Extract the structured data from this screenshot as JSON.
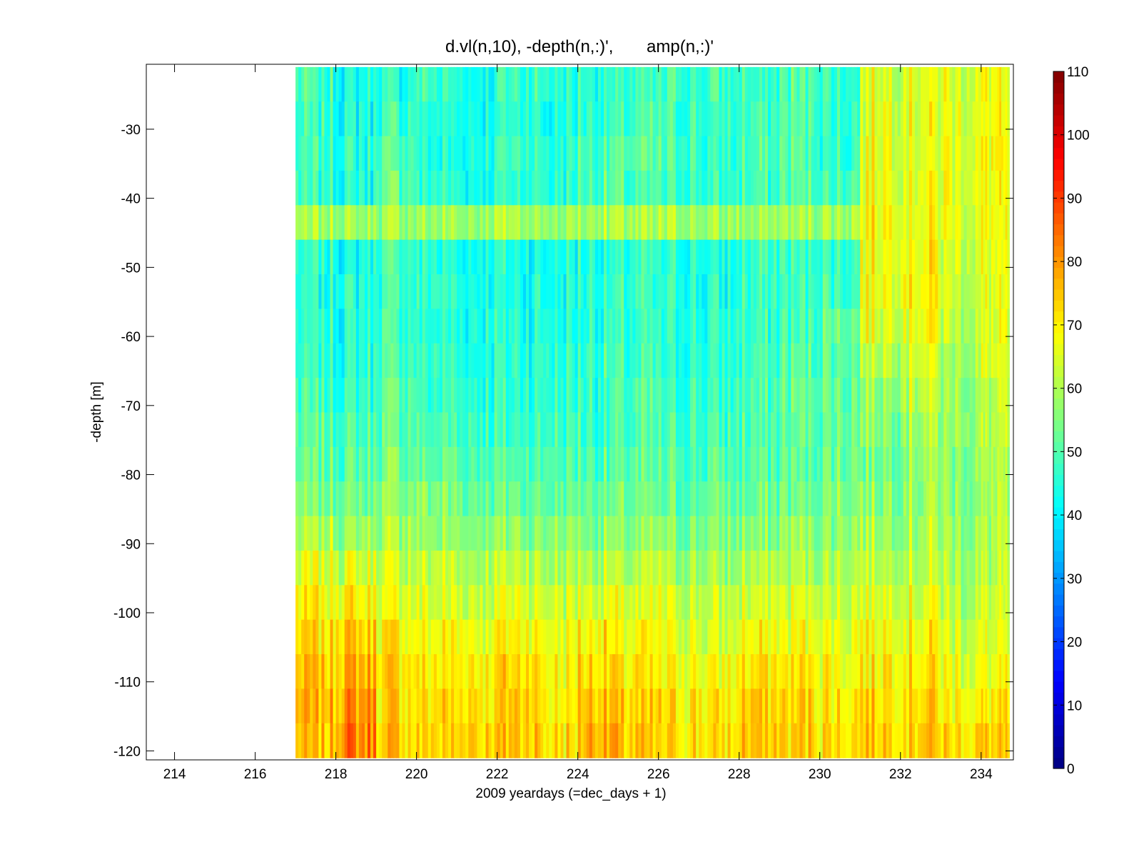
{
  "chart_data": {
    "type": "heatmap",
    "title": "d.vl(n,10), -depth(n,:)',       amp(n,:)'",
    "xlabel": "2009 yeardays (=dec_days + 1)",
    "ylabel": "-depth [m]",
    "xlim": [
      213.3,
      234.8
    ],
    "ylim": [
      -121.3,
      -20.6
    ],
    "x_ticks": [
      214,
      216,
      218,
      220,
      222,
      224,
      226,
      228,
      230,
      232,
      234
    ],
    "y_ticks": [
      -120,
      -110,
      -100,
      -90,
      -80,
      -70,
      -60,
      -50,
      -40,
      -30
    ],
    "data_x_range": [
      217.0,
      234.7
    ],
    "depth_bins": [
      -23.5,
      -28.5,
      -33.5,
      -38.5,
      -43.5,
      -48.5,
      -53.5,
      -58.5,
      -63.5,
      -68.5,
      -73.5,
      -78.5,
      -83.5,
      -88.5,
      -93.5,
      -98.5,
      -103.5,
      -108.5,
      -113.5,
      -118.5
    ],
    "day_segments": [
      217.5,
      218.5,
      219.5,
      220.5,
      221.5,
      222.5,
      223.5,
      224.5,
      225.5,
      226.5,
      227.5,
      228.5,
      229.5,
      230.5,
      231.5,
      232.5,
      233.5,
      234.5
    ],
    "amp_matrix": [
      [
        47,
        44,
        46,
        47,
        44,
        48,
        45,
        46,
        47,
        48,
        48,
        48,
        50,
        47,
        65,
        66,
        66,
        66
      ],
      [
        46,
        44,
        48,
        46,
        44,
        46,
        44,
        48,
        48,
        48,
        47,
        49,
        50,
        47,
        66,
        66,
        66,
        67
      ],
      [
        47,
        45,
        50,
        45,
        45,
        48,
        46,
        49,
        50,
        49,
        46,
        49,
        51,
        48,
        67,
        65,
        66,
        68
      ],
      [
        47,
        45,
        52,
        46,
        45,
        47,
        46,
        50,
        49,
        48,
        46,
        48,
        50,
        49,
        68,
        67,
        66,
        67
      ],
      [
        58,
        58,
        59,
        58,
        58,
        59,
        58,
        59,
        59,
        59,
        58,
        58,
        59,
        60,
        69,
        68,
        66,
        66
      ],
      [
        45,
        44,
        48,
        45,
        44,
        44,
        44,
        46,
        46,
        45,
        44,
        47,
        47,
        48,
        68,
        69,
        64,
        66
      ],
      [
        45,
        45,
        48,
        46,
        44,
        44,
        45,
        46,
        46,
        45,
        44,
        47,
        48,
        50,
        68,
        70,
        63,
        65
      ],
      [
        46,
        45,
        48,
        46,
        45,
        45,
        45,
        46,
        46,
        45,
        45,
        47,
        49,
        52,
        66,
        68,
        62,
        64
      ],
      [
        47,
        46,
        49,
        47,
        46,
        46,
        46,
        47,
        47,
        46,
        46,
        48,
        50,
        52,
        62,
        65,
        60,
        63
      ],
      [
        48,
        47,
        50,
        48,
        47,
        47,
        47,
        48,
        48,
        47,
        47,
        49,
        51,
        53,
        58,
        62,
        58,
        61
      ],
      [
        50,
        49,
        52,
        50,
        48,
        48,
        48,
        49,
        49,
        48,
        48,
        50,
        51,
        53,
        56,
        60,
        58,
        60
      ],
      [
        52,
        51,
        54,
        52,
        50,
        50,
        50,
        50,
        50,
        50,
        50,
        51,
        52,
        54,
        55,
        58,
        57,
        59
      ],
      [
        55,
        54,
        56,
        55,
        53,
        53,
        52,
        53,
        52,
        52,
        52,
        53,
        54,
        56,
        57,
        58,
        57,
        59
      ],
      [
        60,
        58,
        60,
        58,
        57,
        57,
        56,
        56,
        55,
        55,
        55,
        56,
        57,
        58,
        60,
        60,
        58,
        60
      ],
      [
        65,
        64,
        63,
        62,
        61,
        62,
        60,
        61,
        59,
        59,
        58,
        60,
        60,
        61,
        63,
        62,
        60,
        61
      ],
      [
        68,
        70,
        66,
        65,
        64,
        66,
        63,
        66,
        63,
        63,
        62,
        64,
        64,
        64,
        66,
        66,
        62,
        62
      ],
      [
        72,
        74,
        69,
        68,
        68,
        70,
        66,
        70,
        67,
        66,
        64,
        68,
        68,
        67,
        69,
        69,
        65,
        64
      ],
      [
        74,
        77,
        72,
        70,
        71,
        73,
        69,
        73,
        70,
        69,
        67,
        72,
        71,
        69,
        71,
        72,
        67,
        66
      ],
      [
        75,
        80,
        73,
        72,
        73,
        74,
        71,
        75,
        72,
        71,
        70,
        74,
        73,
        71,
        73,
        74,
        70,
        70
      ],
      [
        75,
        82,
        74,
        73,
        74,
        75,
        72,
        77,
        74,
        72,
        71,
        75,
        74,
        72,
        75,
        75,
        73,
        72
      ]
    ],
    "colorbar": {
      "colormap": "jet",
      "clim": [
        0,
        110
      ],
      "ticks": [
        0,
        10,
        20,
        30,
        40,
        50,
        60,
        70,
        80,
        90,
        100,
        110
      ]
    },
    "grid": false,
    "legend": false
  }
}
